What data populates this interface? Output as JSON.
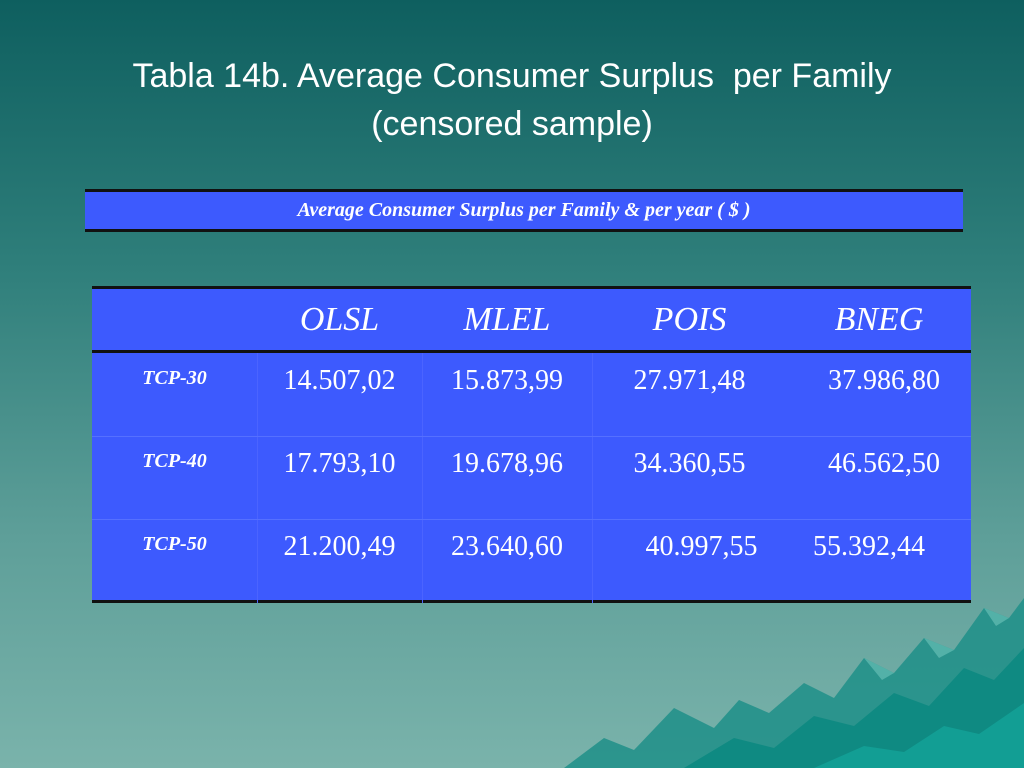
{
  "title": {
    "line1": "Tabla 14b. Average Consumer Surplus  per Family",
    "line2": "(censored sample)"
  },
  "subtitle": "Average Consumer Surplus per Family & per year ( $ )",
  "table": {
    "columns": [
      "OLSL",
      "MLEL",
      "POIS",
      "BNEG"
    ],
    "rows": [
      {
        "label": "TCP-30",
        "values": [
          "14.507,02",
          "15.873,99",
          "27.971,48",
          "37.986,80"
        ]
      },
      {
        "label": "TCP-40",
        "values": [
          "17.793,10",
          "19.678,96",
          "34.360,55",
          "46.562,50"
        ]
      },
      {
        "label": "TCP-50",
        "values": [
          "21.200,49",
          "23.640,60",
          "40.997,55",
          "55.392,44"
        ]
      }
    ]
  },
  "colors": {
    "background_top": "#0e5f5f",
    "background_bottom": "#7ab3ab",
    "table_fill": "#3d5afe",
    "border": "#111111",
    "text": "#ffffff"
  }
}
